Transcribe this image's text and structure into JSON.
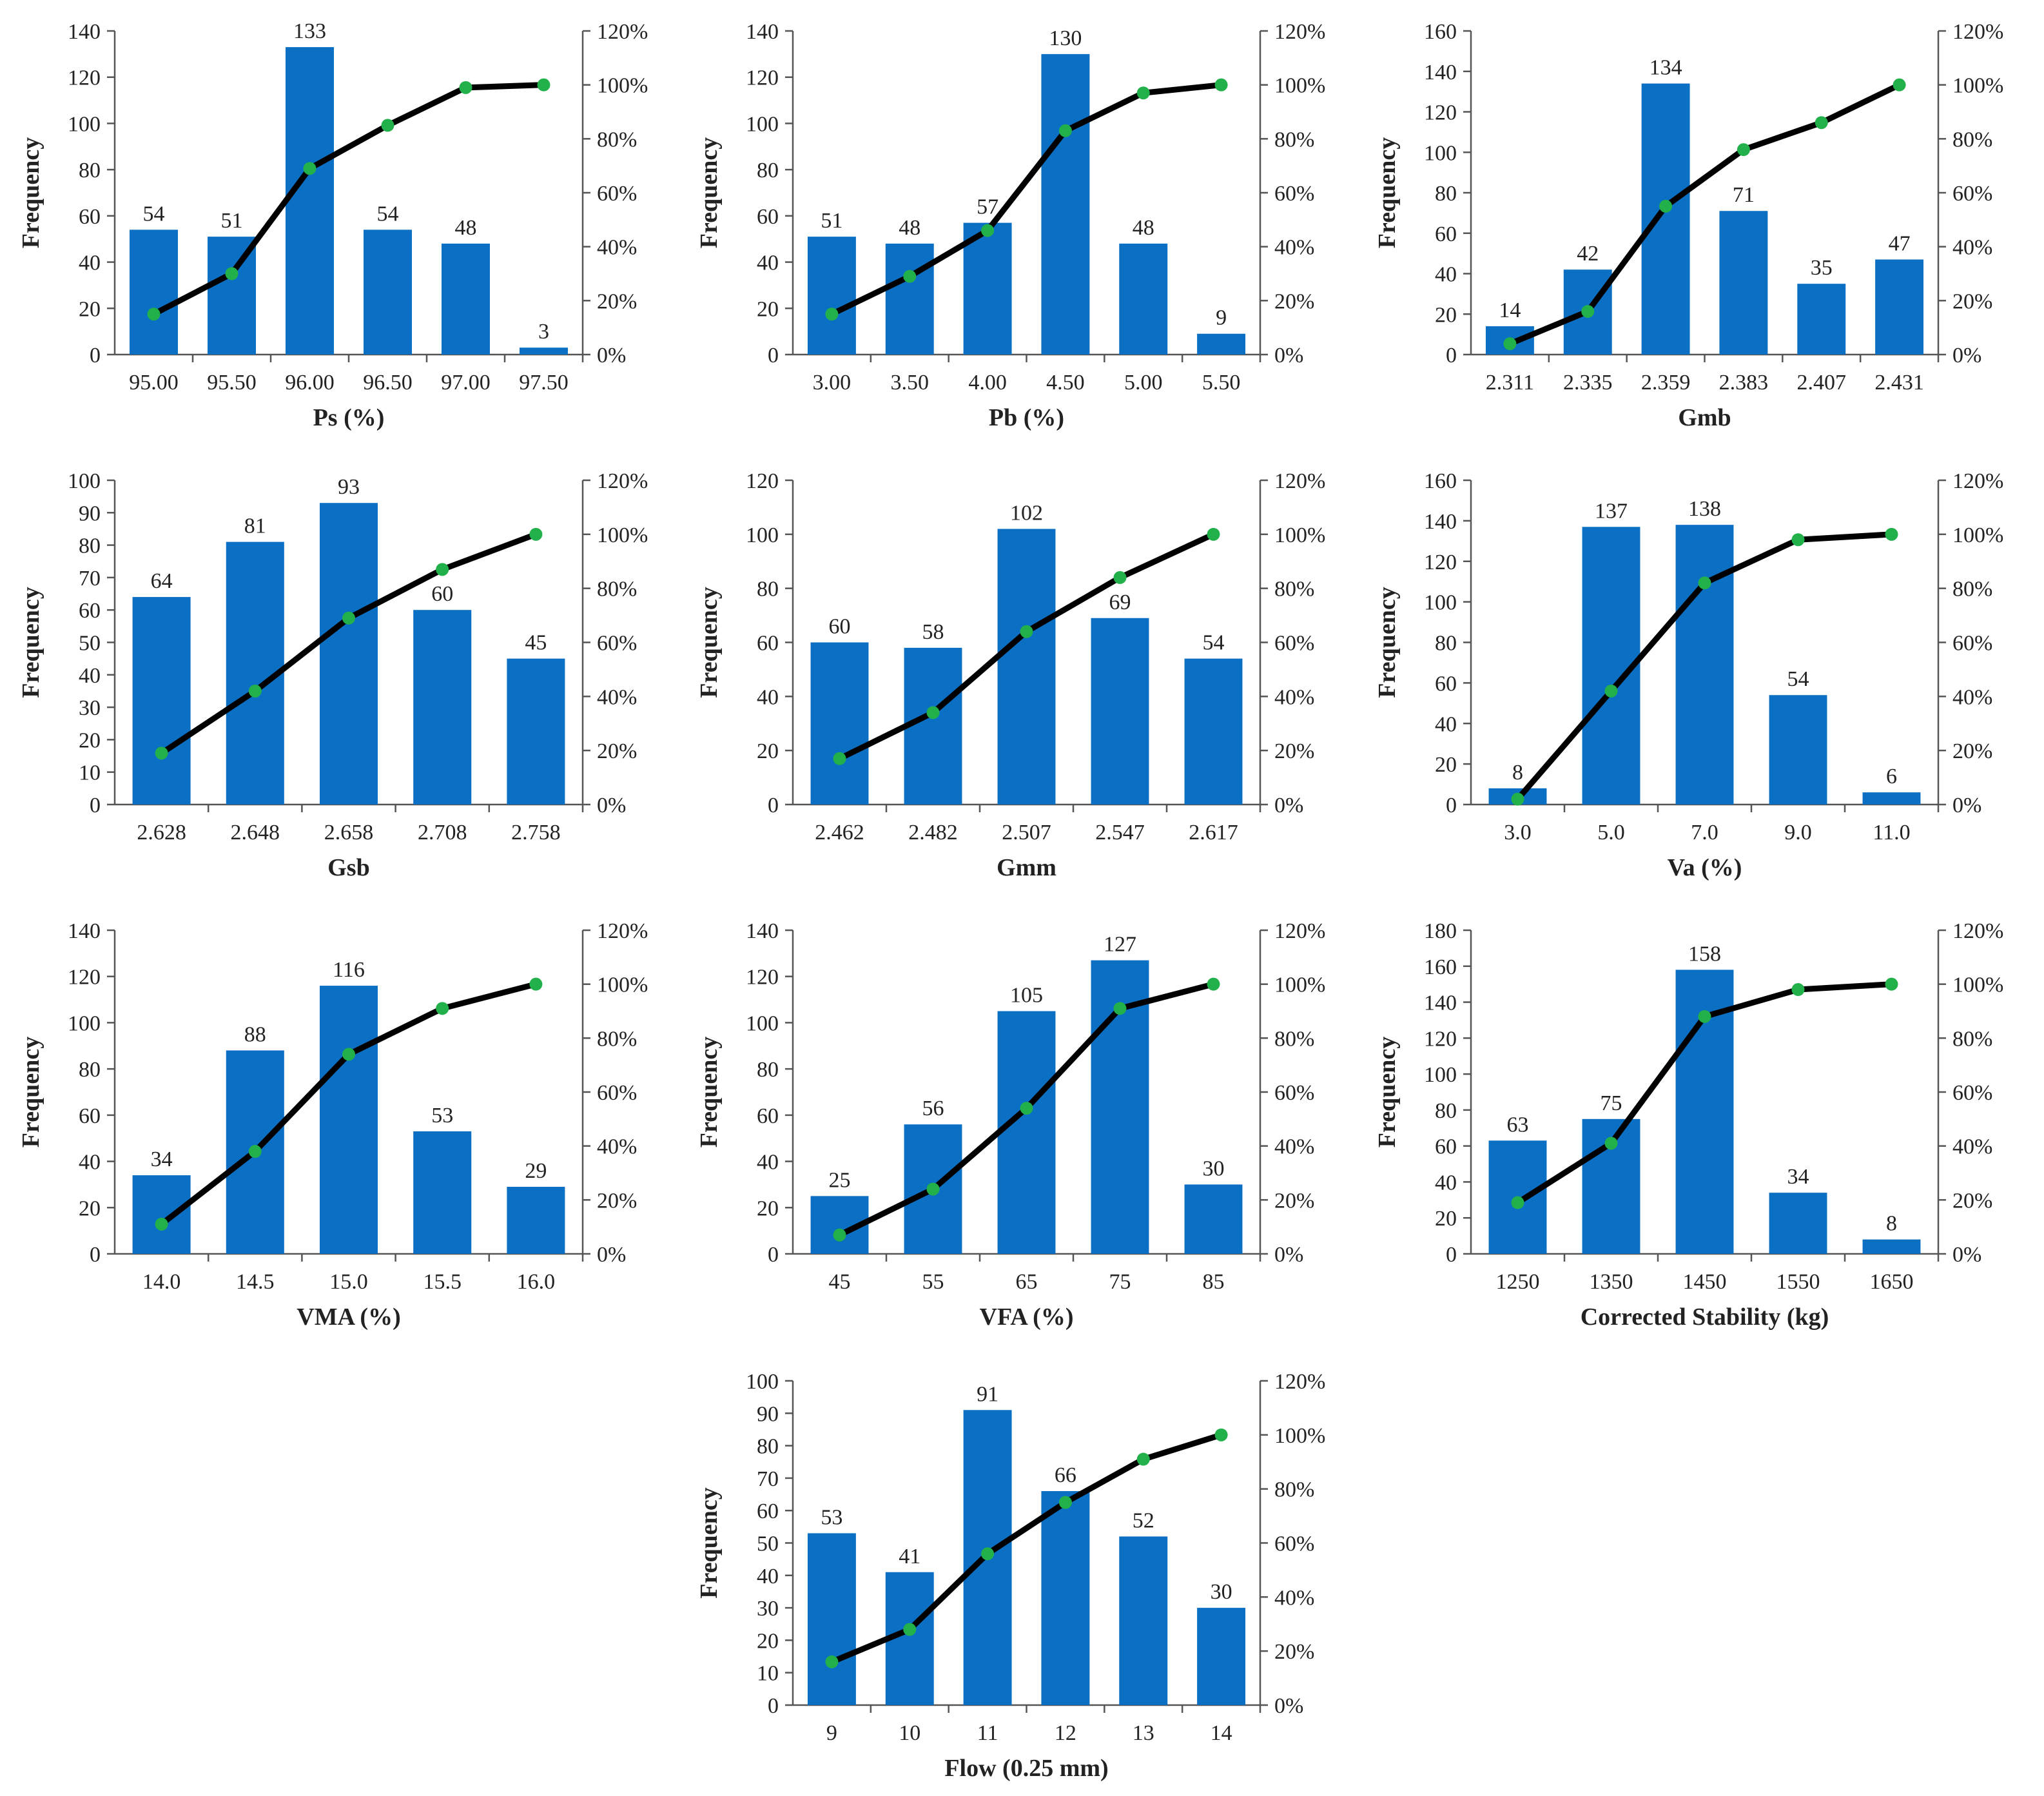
{
  "colors": {
    "bar": "#0b6fc4",
    "line": "#000000",
    "marker": "#22b04b"
  },
  "chart_data": [
    {
      "type": "bar",
      "xlabel": "Ps (%)",
      "ylabel": "Frequency",
      "categories": [
        "95.00",
        "95.50",
        "96.00",
        "96.50",
        "97.00",
        "97.50"
      ],
      "values": [
        54,
        51,
        133,
        54,
        48,
        3
      ],
      "value_labels": [
        "54",
        "51",
        "133",
        "54",
        "48",
        "3"
      ],
      "cumulative_percent": [
        15,
        30,
        69,
        85,
        99,
        100
      ],
      "ylim": [
        0,
        140
      ],
      "yticks": [
        "0",
        "20",
        "40",
        "60",
        "80",
        "100",
        "120",
        "140"
      ],
      "y2lim": [
        0,
        120
      ],
      "y2ticks": [
        "0%",
        "20%",
        "40%",
        "60%",
        "80%",
        "100%",
        "120%"
      ]
    },
    {
      "type": "bar",
      "xlabel": "Pb (%)",
      "ylabel": "Frequency",
      "categories": [
        "3.00",
        "3.50",
        "4.00",
        "4.50",
        "5.00",
        "5.50"
      ],
      "values": [
        51,
        48,
        57,
        130,
        48,
        9
      ],
      "value_labels": [
        "51",
        "48",
        "57",
        "130",
        "48",
        "9"
      ],
      "cumulative_percent": [
        15,
        29,
        46,
        83,
        97,
        100
      ],
      "ylim": [
        0,
        140
      ],
      "yticks": [
        "0",
        "20",
        "40",
        "60",
        "80",
        "100",
        "120",
        "140"
      ],
      "y2lim": [
        0,
        120
      ],
      "y2ticks": [
        "0%",
        "20%",
        "40%",
        "60%",
        "80%",
        "100%",
        "120%"
      ]
    },
    {
      "type": "bar",
      "xlabel": "Gmb",
      "ylabel": "Frequency",
      "categories": [
        "2.311",
        "2.335",
        "2.359",
        "2.383",
        "2.407",
        "2.431"
      ],
      "values": [
        14,
        42,
        134,
        71,
        35,
        47
      ],
      "value_labels": [
        "14",
        "42",
        "134",
        "71",
        "35",
        "47"
      ],
      "cumulative_percent": [
        4,
        16,
        55,
        76,
        86,
        100
      ],
      "ylim": [
        0,
        160
      ],
      "yticks": [
        "0",
        "20",
        "40",
        "60",
        "80",
        "100",
        "120",
        "140",
        "160"
      ],
      "y2lim": [
        0,
        120
      ],
      "y2ticks": [
        "0%",
        "20%",
        "40%",
        "60%",
        "80%",
        "100%",
        "120%"
      ]
    },
    {
      "type": "bar",
      "xlabel": "Gsb",
      "ylabel": "Frequency",
      "categories": [
        "2.628",
        "2.648",
        "2.658",
        "2.708",
        "2.758"
      ],
      "values": [
        64,
        81,
        93,
        60,
        45
      ],
      "value_labels": [
        "64",
        "81",
        "93",
        "60",
        "45"
      ],
      "cumulative_percent": [
        19,
        42,
        69,
        87,
        100
      ],
      "ylim": [
        0,
        100
      ],
      "yticks": [
        "0",
        "10",
        "20",
        "30",
        "40",
        "50",
        "60",
        "70",
        "80",
        "90",
        "100"
      ],
      "y2lim": [
        0,
        120
      ],
      "y2ticks": [
        "0%",
        "20%",
        "40%",
        "60%",
        "80%",
        "100%",
        "120%"
      ]
    },
    {
      "type": "bar",
      "xlabel": "Gmm",
      "ylabel": "Frequency",
      "categories": [
        "2.462",
        "2.482",
        "2.507",
        "2.547",
        "2.617"
      ],
      "values": [
        60,
        58,
        102,
        69,
        54
      ],
      "value_labels": [
        "60",
        "58",
        "102",
        "69",
        "54"
      ],
      "cumulative_percent": [
        17,
        34,
        64,
        84,
        100
      ],
      "ylim": [
        0,
        120
      ],
      "yticks": [
        "0",
        "20",
        "40",
        "60",
        "80",
        "100",
        "120"
      ],
      "y2lim": [
        0,
        120
      ],
      "y2ticks": [
        "0%",
        "20%",
        "40%",
        "60%",
        "80%",
        "100%",
        "120%"
      ]
    },
    {
      "type": "bar",
      "xlabel": "Va (%)",
      "ylabel": "Frequency",
      "categories": [
        "3.0",
        "5.0",
        "7.0",
        "9.0",
        "11.0"
      ],
      "values": [
        8,
        137,
        138,
        54,
        6
      ],
      "value_labels": [
        "8",
        "137",
        "138",
        "54",
        "6"
      ],
      "cumulative_percent": [
        2,
        42,
        82,
        98,
        100
      ],
      "ylim": [
        0,
        160
      ],
      "yticks": [
        "0",
        "20",
        "40",
        "60",
        "80",
        "100",
        "120",
        "140",
        "160"
      ],
      "y2lim": [
        0,
        120
      ],
      "y2ticks": [
        "0%",
        "20%",
        "40%",
        "60%",
        "80%",
        "100%",
        "120%"
      ]
    },
    {
      "type": "bar",
      "xlabel": "VMA (%)",
      "ylabel": "Frequency",
      "categories": [
        "14.0",
        "14.5",
        "15.0",
        "15.5",
        "16.0"
      ],
      "values": [
        34,
        88,
        116,
        53,
        29
      ],
      "value_labels": [
        "34",
        "88",
        "116",
        "53",
        "29"
      ],
      "cumulative_percent": [
        11,
        38,
        74,
        91,
        100
      ],
      "ylim": [
        0,
        140
      ],
      "yticks": [
        "0",
        "20",
        "40",
        "60",
        "80",
        "100",
        "120",
        "140"
      ],
      "y2lim": [
        0,
        120
      ],
      "y2ticks": [
        "0%",
        "20%",
        "40%",
        "60%",
        "80%",
        "100%",
        "120%"
      ]
    },
    {
      "type": "bar",
      "xlabel": "VFA (%)",
      "ylabel": "Frequency",
      "categories": [
        "45",
        "55",
        "65",
        "75",
        "85"
      ],
      "values": [
        25,
        56,
        105,
        127,
        30
      ],
      "value_labels": [
        "25",
        "56",
        "105",
        "127",
        "30"
      ],
      "cumulative_percent": [
        7,
        24,
        54,
        91,
        100
      ],
      "ylim": [
        0,
        140
      ],
      "yticks": [
        "0",
        "20",
        "40",
        "60",
        "80",
        "100",
        "120",
        "140"
      ],
      "y2lim": [
        0,
        120
      ],
      "y2ticks": [
        "0%",
        "20%",
        "40%",
        "60%",
        "80%",
        "100%",
        "120%"
      ]
    },
    {
      "type": "bar",
      "xlabel": "Corrected Stability (kg)",
      "ylabel": "Frequency",
      "categories": [
        "1250",
        "1350",
        "1450",
        "1550",
        "1650"
      ],
      "values": [
        63,
        75,
        158,
        34,
        8
      ],
      "value_labels": [
        "63",
        "75",
        "158",
        "34",
        "8"
      ],
      "cumulative_percent": [
        19,
        41,
        88,
        98,
        100
      ],
      "ylim": [
        0,
        180
      ],
      "yticks": [
        "0",
        "20",
        "40",
        "60",
        "80",
        "100",
        "120",
        "140",
        "160",
        "180"
      ],
      "y2lim": [
        0,
        120
      ],
      "y2ticks": [
        "0%",
        "20%",
        "40%",
        "60%",
        "80%",
        "100%",
        "120%"
      ]
    },
    {
      "type": "bar",
      "xlabel": "Flow (0.25 mm)",
      "ylabel": "Frequency",
      "categories": [
        "9",
        "10",
        "11",
        "12",
        "13",
        "14"
      ],
      "values": [
        53,
        41,
        91,
        66,
        52,
        30
      ],
      "value_labels": [
        "53",
        "41",
        "91",
        "66",
        "52",
        "30"
      ],
      "cumulative_percent": [
        16,
        28,
        56,
        75,
        91,
        100
      ],
      "ylim": [
        0,
        100
      ],
      "yticks": [
        "0",
        "10",
        "20",
        "30",
        "40",
        "50",
        "60",
        "70",
        "80",
        "90",
        "100"
      ],
      "y2lim": [
        0,
        120
      ],
      "y2ticks": [
        "0%",
        "20%",
        "40%",
        "60%",
        "80%",
        "100%",
        "120%"
      ]
    }
  ]
}
